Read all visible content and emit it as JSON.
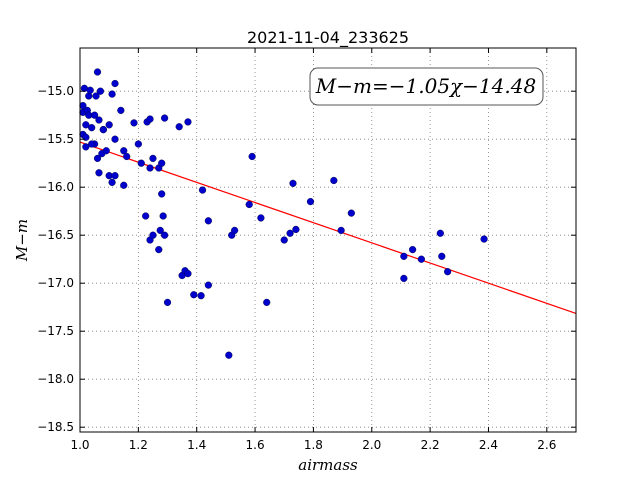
{
  "chart_data": {
    "type": "scatter",
    "title": "2021-11-04_233625",
    "xlabel": "airmass",
    "ylabel": "M−m",
    "annotation": "M−m=−1.05χ−14.48",
    "xlim": [
      1.0,
      2.7
    ],
    "ylim": [
      -18.55,
      -14.55
    ],
    "x_ticks": [
      1.0,
      1.2,
      1.4,
      1.6,
      1.8,
      2.0,
      2.2,
      2.4,
      2.6
    ],
    "x_tick_labels": [
      "1.0",
      "1.2",
      "1.4",
      "1.6",
      "1.8",
      "2.0",
      "2.2",
      "2.4",
      "2.6"
    ],
    "y_ticks": [
      -15.0,
      -15.5,
      -16.0,
      -16.5,
      -17.0,
      -17.5,
      -18.0,
      -18.5
    ],
    "y_tick_labels": [
      "−15.0",
      "−15.5",
      "−16.0",
      "−16.5",
      "−17.0",
      "−17.5",
      "−18.0",
      "−18.5"
    ],
    "grid": true,
    "point_color": "#0000cc",
    "fit_line": {
      "slope": -1.05,
      "intercept": -14.48,
      "color": "#ff0000"
    },
    "points": [
      [
        1.01,
        -15.22
      ],
      [
        1.015,
        -14.97
      ],
      [
        1.02,
        -15.35
      ],
      [
        1.03,
        -15.05
      ],
      [
        1.035,
        -14.99
      ],
      [
        1.02,
        -15.58
      ],
      [
        1.01,
        -15.45
      ],
      [
        1.025,
        -15.2
      ],
      [
        1.04,
        -15.38
      ],
      [
        1.05,
        -15.55
      ],
      [
        1.06,
        -14.8
      ],
      [
        1.055,
        -15.05
      ],
      [
        1.07,
        -15.0
      ],
      [
        1.08,
        -15.4
      ],
      [
        1.065,
        -15.3
      ],
      [
        1.075,
        -15.65
      ],
      [
        1.09,
        -15.62
      ],
      [
        1.06,
        -15.7
      ],
      [
        1.065,
        -15.85
      ],
      [
        1.1,
        -15.88
      ],
      [
        1.11,
        -15.95
      ],
      [
        1.12,
        -15.88
      ],
      [
        1.12,
        -15.5
      ],
      [
        1.11,
        -15.03
      ],
      [
        1.12,
        -14.92
      ],
      [
        1.14,
        -15.2
      ],
      [
        1.15,
        -15.62
      ],
      [
        1.16,
        -15.68
      ],
      [
        1.15,
        -15.98
      ],
      [
        1.185,
        -15.33
      ],
      [
        1.2,
        -15.55
      ],
      [
        1.21,
        -15.75
      ],
      [
        1.23,
        -15.32
      ],
      [
        1.24,
        -15.29
      ],
      [
        1.24,
        -15.8
      ],
      [
        1.25,
        -15.7
      ],
      [
        1.27,
        -15.8
      ],
      [
        1.28,
        -15.75
      ],
      [
        1.29,
        -15.28
      ],
      [
        1.225,
        -16.3
      ],
      [
        1.24,
        -16.55
      ],
      [
        1.25,
        -16.5
      ],
      [
        1.27,
        -16.65
      ],
      [
        1.275,
        -16.45
      ],
      [
        1.285,
        -16.3
      ],
      [
        1.29,
        -16.5
      ],
      [
        1.28,
        -16.07
      ],
      [
        1.3,
        -17.2
      ],
      [
        1.34,
        -15.37
      ],
      [
        1.37,
        -15.32
      ],
      [
        1.35,
        -16.92
      ],
      [
        1.36,
        -16.87
      ],
      [
        1.37,
        -16.9
      ],
      [
        1.39,
        -17.12
      ],
      [
        1.415,
        -17.13
      ],
      [
        1.44,
        -17.02
      ],
      [
        1.42,
        -16.03
      ],
      [
        1.44,
        -16.35
      ],
      [
        1.51,
        -17.75
      ],
      [
        1.52,
        -16.5
      ],
      [
        1.53,
        -16.45
      ],
      [
        1.58,
        -16.18
      ],
      [
        1.59,
        -15.68
      ],
      [
        1.62,
        -16.32
      ],
      [
        1.64,
        -17.2
      ],
      [
        1.7,
        -16.55
      ],
      [
        1.72,
        -16.48
      ],
      [
        1.74,
        -16.44
      ],
      [
        1.73,
        -15.96
      ],
      [
        1.79,
        -16.15
      ],
      [
        1.87,
        -15.93
      ],
      [
        1.895,
        -16.45
      ],
      [
        1.93,
        -16.27
      ],
      [
        2.11,
        -16.72
      ],
      [
        2.11,
        -16.95
      ],
      [
        2.14,
        -16.65
      ],
      [
        2.17,
        -16.75
      ],
      [
        2.235,
        -16.48
      ],
      [
        2.24,
        -16.72
      ],
      [
        2.26,
        -16.88
      ],
      [
        2.385,
        -16.54
      ],
      [
        1.01,
        -15.15
      ],
      [
        1.03,
        -15.25
      ],
      [
        1.04,
        -15.55
      ],
      [
        1.05,
        -15.25
      ],
      [
        1.08,
        -15.4
      ],
      [
        1.1,
        -15.35
      ],
      [
        1.02,
        -15.48
      ]
    ]
  }
}
